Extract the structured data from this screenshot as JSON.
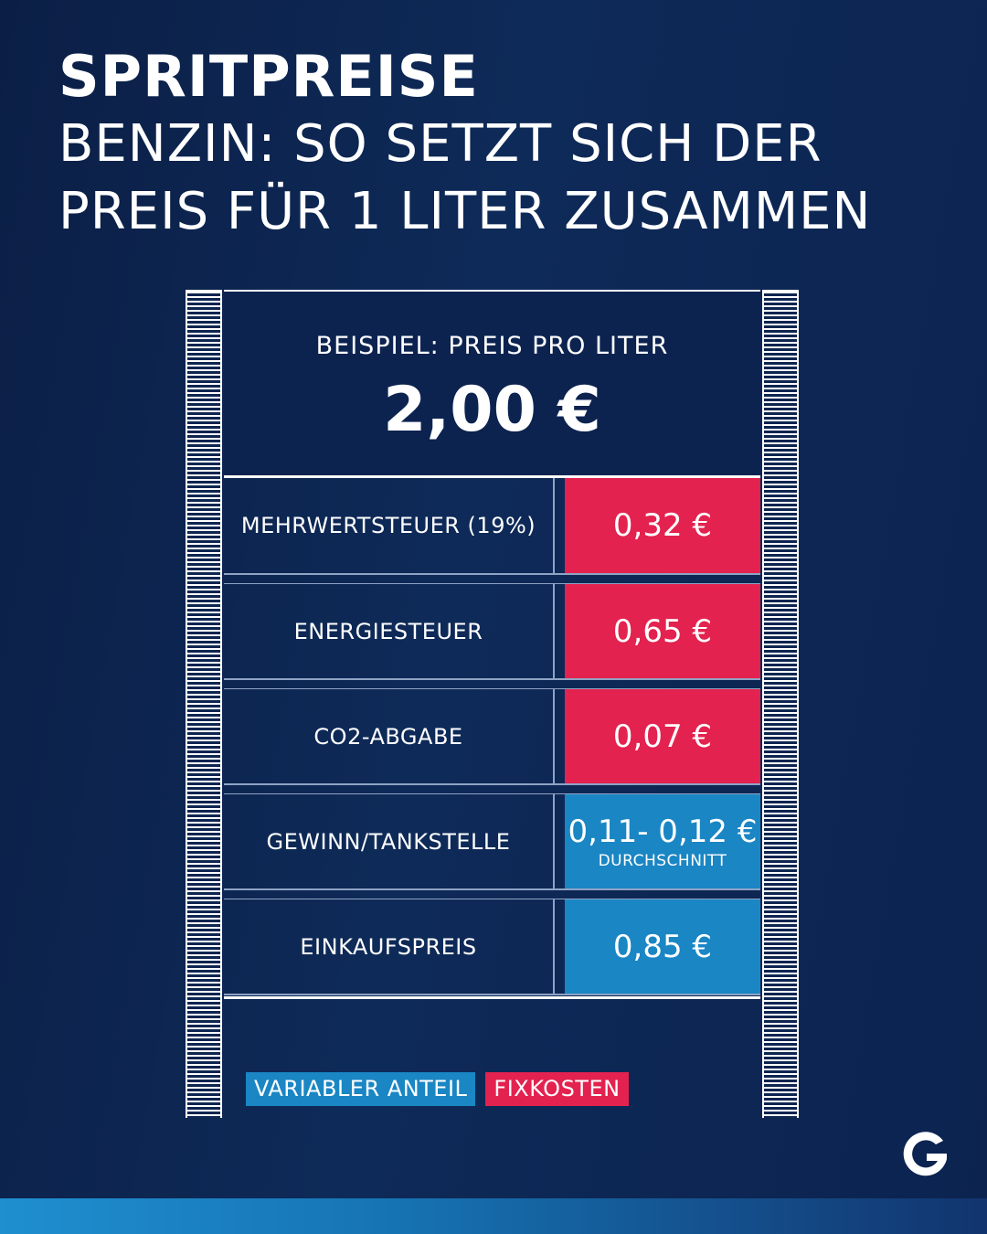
{
  "header": {
    "title": "SPRITPREISE",
    "subtitle_line1": "BENZIN: SO SETZT SICH DER",
    "subtitle_line2": "PREIS FÜR 1 LITER ZUSAMMEN"
  },
  "display": {
    "label": "BEISPIEL: PREIS PRO LITER",
    "price": "2,00 €"
  },
  "rows": [
    {
      "label": "MEHRWERTSTEUER (19%)",
      "value": "0,32 €",
      "kind": "fix"
    },
    {
      "label": "ENERGIESTEUER",
      "value": "0,65 €",
      "kind": "fix"
    },
    {
      "label": "CO2-ABGABE",
      "value": "0,07 €",
      "kind": "fix"
    },
    {
      "label": "GEWINN/TANKSTELLE",
      "value": "0,11- 0,12 €",
      "note": "DURCHSCHNITT",
      "kind": "var"
    },
    {
      "label": "EINKAUFSPREIS",
      "value": "0,85 €",
      "kind": "var"
    }
  ],
  "legend": {
    "variable": "VARIABLER ANTEIL",
    "fixed": "FIXKOSTEN"
  },
  "colors": {
    "background": "#0c2350",
    "fixed": "#e3224f",
    "variable": "#1a86c4"
  },
  "icons": {
    "brand_logo": "g-logo"
  }
}
